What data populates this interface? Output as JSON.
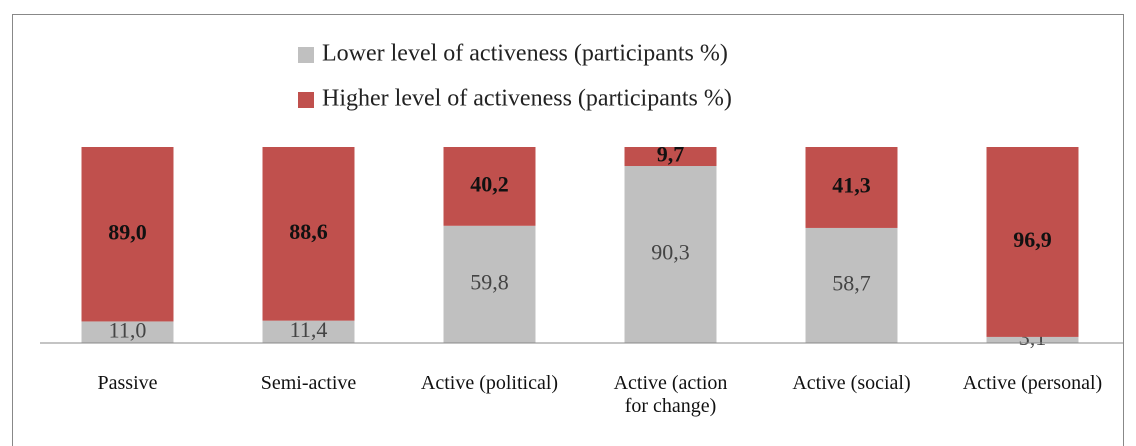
{
  "chart_data": {
    "type": "stacked_bar",
    "categories": [
      "Passive",
      "Semi-active",
      "Active (political)",
      "Active (action for change)",
      "Active (social)",
      "Active (personal)"
    ],
    "series": [
      {
        "name": "Lower level of activeness (participants %)",
        "color": "#c0c0c0",
        "values": [
          11.0,
          11.4,
          59.8,
          90.3,
          58.7,
          3.1
        ],
        "value_labels": [
          "11,0",
          "11,4",
          "59,8",
          "90,3",
          "58,7",
          "3,1"
        ]
      },
      {
        "name": "Higher level of activeness (participants %)",
        "color": "#c0504d",
        "values": [
          89.0,
          88.6,
          40.2,
          9.7,
          41.3,
          96.9
        ],
        "value_labels": [
          "89,0",
          "88,6",
          "40,2",
          "9,7",
          "41,3",
          "96,9"
        ]
      }
    ],
    "legend": "top"
  }
}
